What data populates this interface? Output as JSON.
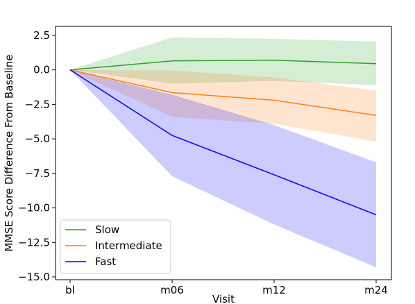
{
  "chart_data": {
    "type": "line",
    "xlabel": "Visit",
    "ylabel": "MMSE Score Difference From Baseline",
    "categories": [
      "bl",
      "m06",
      "m12",
      "m24"
    ],
    "ylim": [
      -15.2,
      3.15
    ],
    "yticks": [
      2.5,
      0.0,
      -2.5,
      -5.0,
      -7.5,
      -10.0,
      -12.5,
      -15.0
    ],
    "ytick_labels": [
      "2.5",
      "0.0",
      "−2.5",
      "−5.0",
      "−7.5",
      "−10.0",
      "−12.5",
      "−15.0"
    ],
    "grid": false,
    "legend_position": "lower-left",
    "series": [
      {
        "name": "Slow",
        "color": "#2ca02c",
        "values": [
          0.0,
          0.65,
          0.7,
          0.45
        ],
        "lower": [
          0.0,
          -1.0,
          -0.8,
          -1.1
        ],
        "upper": [
          0.0,
          2.35,
          2.25,
          2.05
        ]
      },
      {
        "name": "Intermediate",
        "color": "#ff7f0e",
        "values": [
          0.0,
          -1.65,
          -2.2,
          -3.3
        ],
        "lower": [
          0.0,
          -3.4,
          -3.9,
          -5.2
        ],
        "upper": [
          0.0,
          -0.05,
          -0.55,
          -1.5
        ]
      },
      {
        "name": "Fast",
        "color": "#0000ff",
        "values": [
          0.0,
          -4.75,
          -7.6,
          -10.5
        ],
        "lower": [
          0.0,
          -7.7,
          -11.2,
          -14.3
        ],
        "upper": [
          0.0,
          -1.8,
          -4.0,
          -6.7
        ]
      }
    ]
  }
}
